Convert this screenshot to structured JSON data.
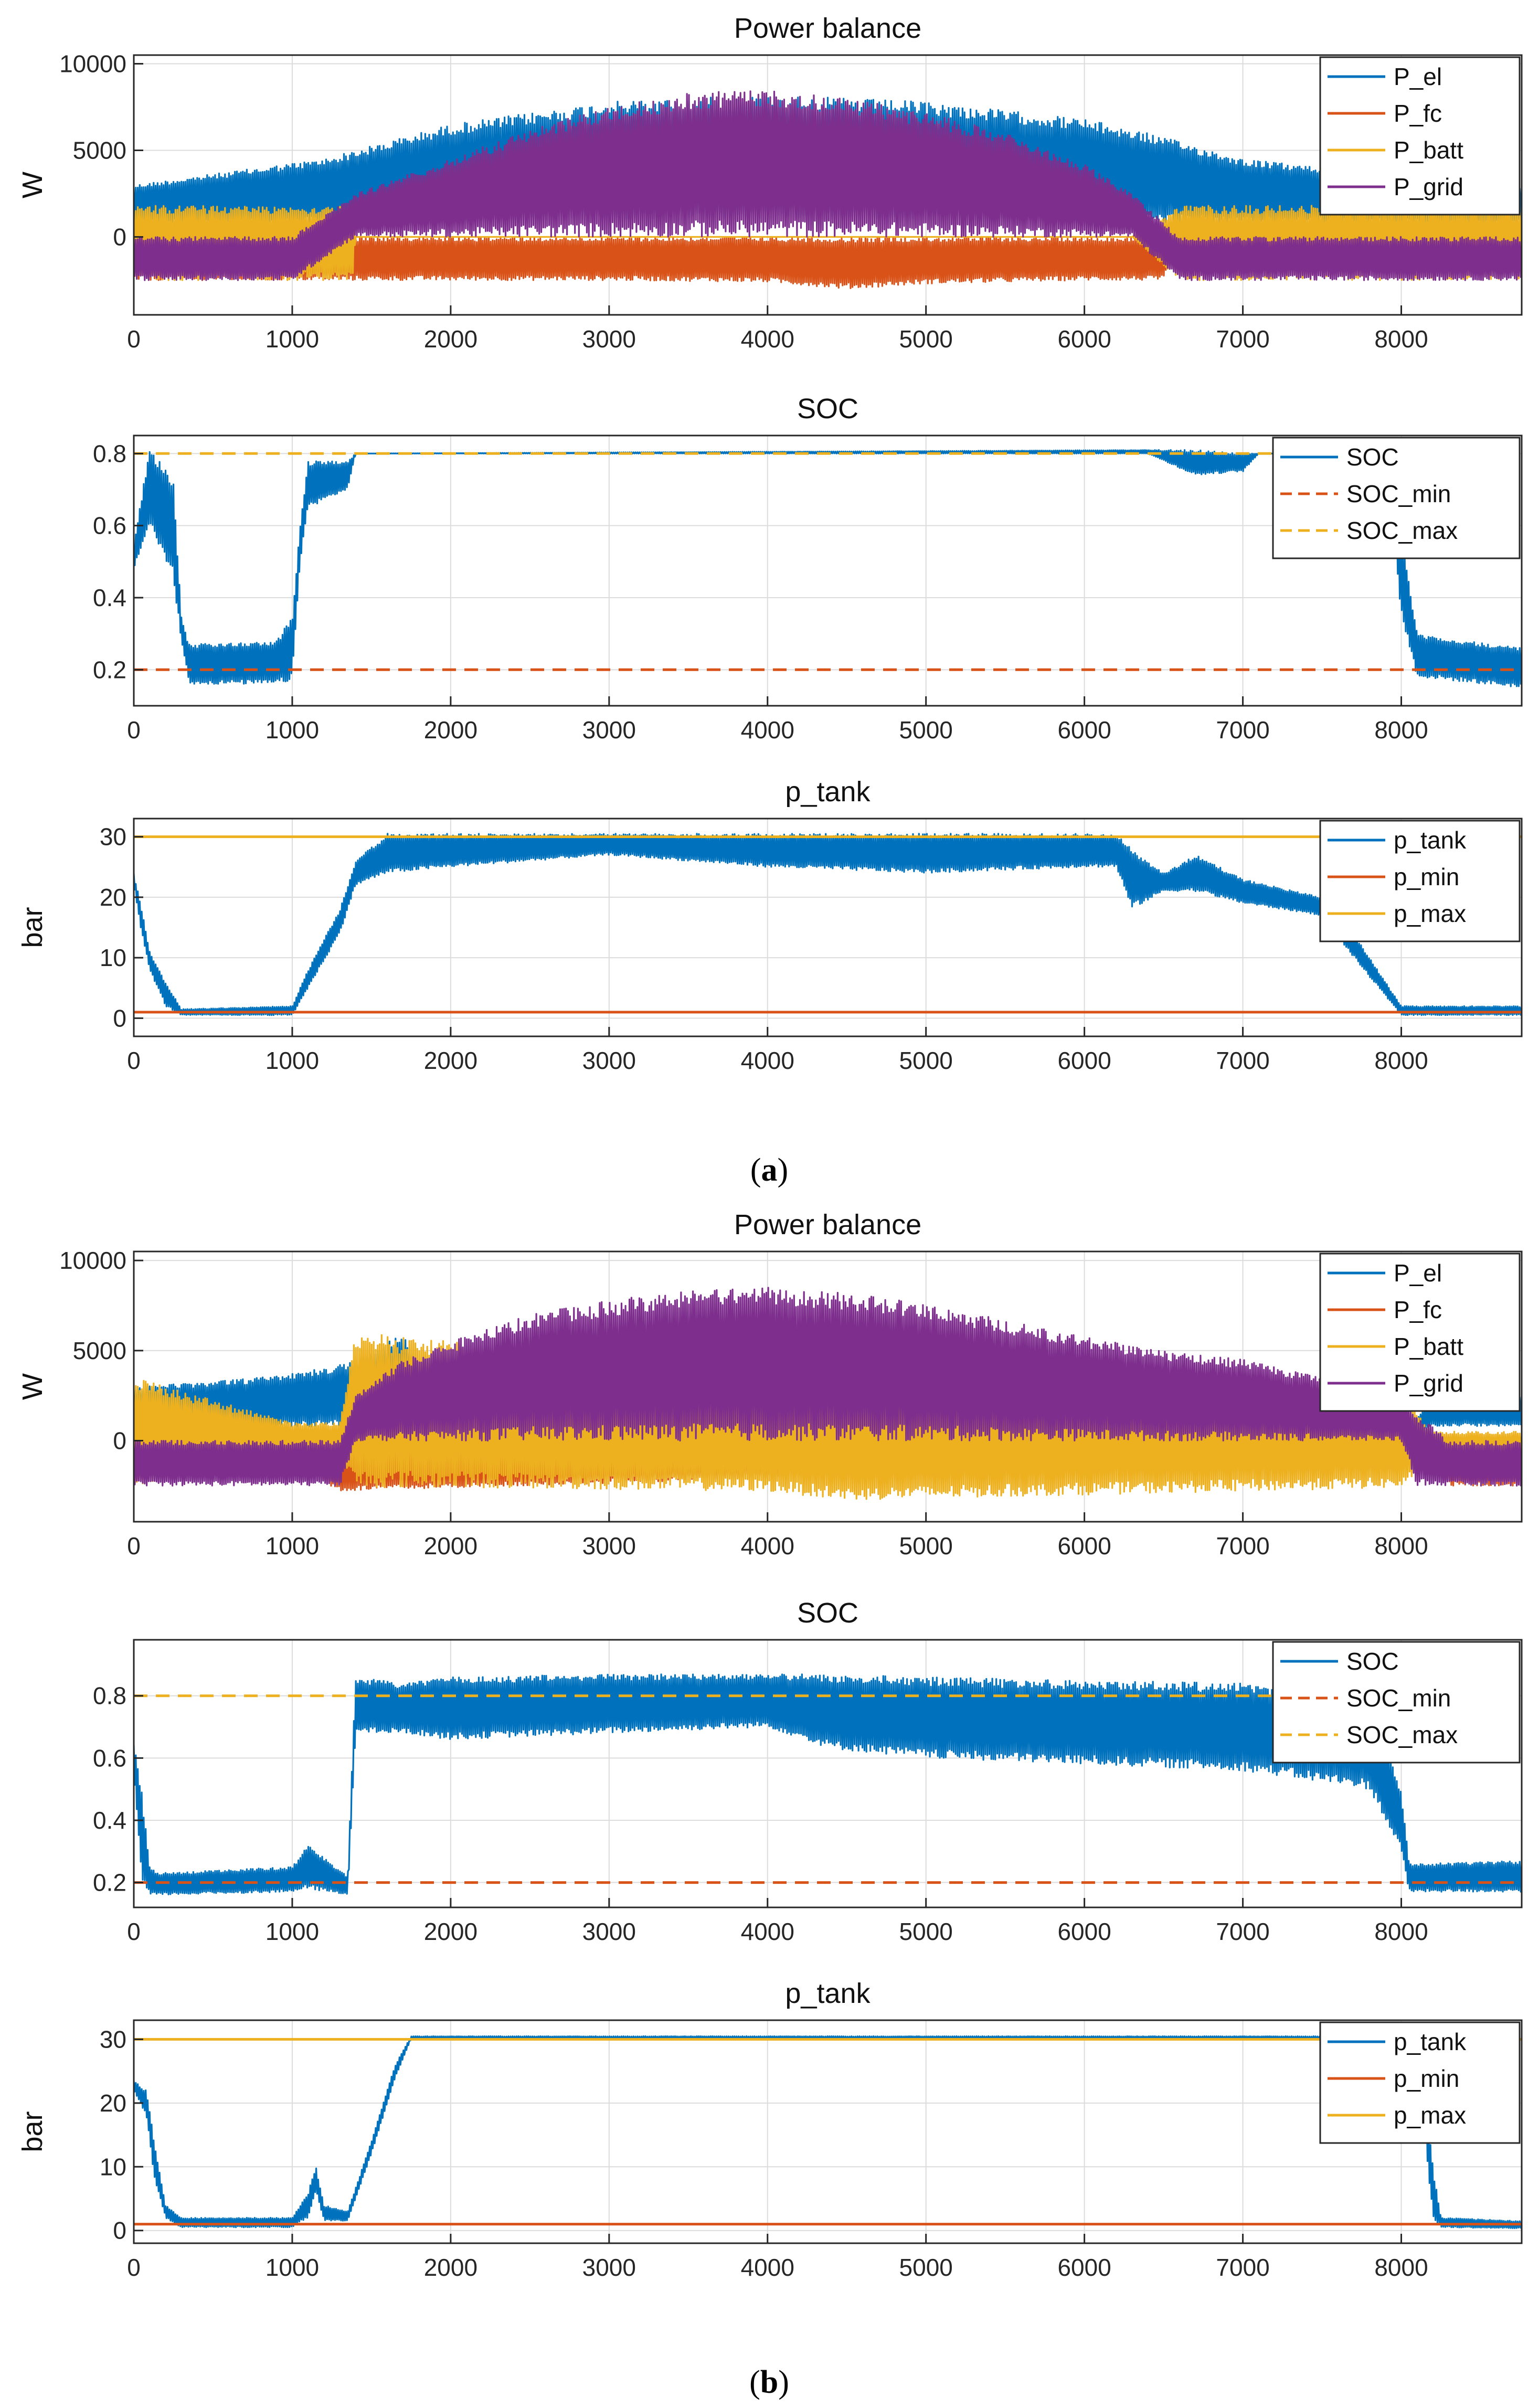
{
  "figure": {
    "captions": [
      {
        "open": "(",
        "letter": "a",
        "close": ")"
      },
      {
        "open": "(",
        "letter": "b",
        "close": ")"
      }
    ]
  },
  "colors": {
    "blue": "#0072BD",
    "orange": "#D95319",
    "yellow": "#EDB120",
    "purple": "#7E2F8E",
    "grid": "#dcdcdc",
    "axis": "#262626"
  },
  "chart_data": [
    {
      "type": "line",
      "title": "Power balance",
      "xlabel": "",
      "ylabel": "W",
      "xlim": [
        0,
        8760
      ],
      "ylim": [
        -4500,
        10500
      ],
      "xticks": [
        0,
        1000,
        2000,
        3000,
        4000,
        5000,
        6000,
        7000,
        8000
      ],
      "yticks": [
        0,
        5000,
        10000
      ],
      "grid": true,
      "legend_position": "top-right",
      "series": [
        {
          "name": "P_el",
          "color": "#0072BD",
          "style": "solid",
          "render": "envelope",
          "x": [
            0,
            400,
            800,
            1200,
            1400,
            2000,
            3000,
            4000,
            5000,
            6000,
            6400,
            7000,
            7500,
            8000,
            8760
          ],
          "upper": [
            3000,
            3500,
            4000,
            4500,
            5000,
            6500,
            7800,
            8200,
            7800,
            6800,
            6000,
            4500,
            4000,
            3500,
            3000
          ],
          "lower": [
            800,
            800,
            700,
            800,
            800,
            1000,
            1000,
            1000,
            1000,
            1000,
            800,
            800,
            800,
            800,
            800
          ]
        },
        {
          "name": "P_fc",
          "color": "#D95319",
          "style": "solid",
          "render": "envelope",
          "x": [
            0,
            1000,
            1400,
            2000,
            3000,
            4000,
            4500,
            5000,
            6000,
            6500,
            6600,
            8760
          ],
          "upper": [
            0,
            0,
            0,
            0,
            0,
            0,
            0,
            0,
            0,
            0,
            0,
            0
          ],
          "lower": [
            -2500,
            -2500,
            -2500,
            -2500,
            -2500,
            -2600,
            -3000,
            -2700,
            -2500,
            -2500,
            0,
            0
          ]
        },
        {
          "name": "P_batt",
          "color": "#EDB120",
          "style": "solid",
          "render": "envelope",
          "x": [
            0,
            1000,
            1380,
            1400,
            6300,
            6600,
            7000,
            8000,
            8760
          ],
          "upper": [
            1800,
            1800,
            1800,
            0,
            0,
            1800,
            1800,
            1800,
            1800
          ],
          "lower": [
            -2500,
            -2500,
            -2500,
            0,
            0,
            -2500,
            -2500,
            -2500,
            -2500
          ]
        },
        {
          "name": "P_grid",
          "color": "#7E2F8E",
          "style": "solid",
          "render": "envelope",
          "x": [
            0,
            1000,
            1400,
            2000,
            2500,
            3000,
            3500,
            4000,
            4500,
            5000,
            5500,
            6000,
            6300,
            6600,
            7000,
            8000,
            8760
          ],
          "upper": [
            0,
            0,
            2500,
            4500,
            6200,
            7500,
            8300,
            8500,
            8000,
            7200,
            6000,
            4200,
            2500,
            0,
            0,
            0,
            0
          ],
          "lower": [
            -2500,
            -2500,
            0,
            0,
            0,
            0,
            0,
            0,
            0,
            0,
            0,
            0,
            0,
            -2500,
            -2500,
            -2500,
            -2500
          ]
        }
      ]
    },
    {
      "type": "line",
      "title": "SOC",
      "xlabel": "",
      "ylabel": "",
      "xlim": [
        0,
        8760
      ],
      "ylim": [
        0.1,
        0.85
      ],
      "xticks": [
        0,
        1000,
        2000,
        3000,
        4000,
        5000,
        6000,
        7000,
        8000
      ],
      "yticks": [
        0.2,
        0.4,
        0.6,
        0.8
      ],
      "grid": true,
      "legend_position": "top-right",
      "series": [
        {
          "name": "SOC",
          "color": "#0072BD",
          "style": "solid",
          "render": "envelope",
          "x": [
            0,
            100,
            250,
            300,
            350,
            900,
            1000,
            1050,
            1100,
            1350,
            1400,
            6400,
            6700,
            7000,
            7100,
            7900,
            8000,
            8100,
            8760
          ],
          "upper": [
            0.55,
            0.82,
            0.72,
            0.35,
            0.27,
            0.28,
            0.35,
            0.6,
            0.78,
            0.78,
            0.8,
            0.81,
            0.81,
            0.8,
            0.8,
            0.8,
            0.58,
            0.3,
            0.26
          ],
          "lower": [
            0.48,
            0.6,
            0.45,
            0.28,
            0.16,
            0.16,
            0.17,
            0.5,
            0.65,
            0.7,
            0.8,
            0.8,
            0.74,
            0.75,
            0.8,
            0.8,
            0.35,
            0.18,
            0.15
          ]
        },
        {
          "name": "SOC_min",
          "color": "#D95319",
          "style": "dashed",
          "x": [
            0,
            8760
          ],
          "y": [
            0.2,
            0.2
          ]
        },
        {
          "name": "SOC_max",
          "color": "#EDB120",
          "style": "dashed",
          "x": [
            0,
            8760
          ],
          "y": [
            0.8,
            0.8
          ]
        }
      ]
    },
    {
      "type": "line",
      "title": "p_tank",
      "xlabel": "",
      "ylabel": "bar",
      "xlim": [
        0,
        8760
      ],
      "ylim": [
        -3,
        33
      ],
      "xticks": [
        0,
        1000,
        2000,
        3000,
        4000,
        5000,
        6000,
        7000,
        8000
      ],
      "yticks": [
        0,
        10,
        20,
        30
      ],
      "grid": true,
      "legend_position": "top-right",
      "series": [
        {
          "name": "p_tank",
          "color": "#0072BD",
          "style": "solid",
          "render": "envelope",
          "x": [
            0,
            50,
            100,
            200,
            300,
            1000,
            1100,
            1300,
            1400,
            1600,
            2000,
            3000,
            4000,
            5000,
            6000,
            6200,
            6300,
            6500,
            6700,
            7000,
            7500,
            7700,
            8000,
            8100,
            8760
          ],
          "upper": [
            24,
            18,
            11,
            6,
            1.5,
            2,
            8,
            18,
            26,
            30.5,
            30.5,
            30.5,
            30.5,
            30.5,
            30.5,
            30.5,
            28,
            24,
            27,
            23,
            20,
            14,
            2,
            2,
            2
          ],
          "lower": [
            22,
            14,
            8,
            2,
            0.5,
            0.5,
            5,
            14,
            22,
            24,
            25,
            27,
            25,
            24,
            25,
            25,
            18,
            21,
            21,
            19,
            17,
            10,
            0.5,
            0.5,
            0.5
          ]
        },
        {
          "name": "p_min",
          "color": "#D95319",
          "style": "solid",
          "x": [
            0,
            8760
          ],
          "y": [
            1,
            1
          ]
        },
        {
          "name": "p_max",
          "color": "#EDB120",
          "style": "solid",
          "x": [
            0,
            8760
          ],
          "y": [
            30,
            30
          ]
        }
      ]
    },
    {
      "type": "line",
      "title": "Power balance",
      "xlabel": "",
      "ylabel": "W",
      "xlim": [
        0,
        8760
      ],
      "ylim": [
        -4500,
        10500
      ],
      "xticks": [
        0,
        1000,
        2000,
        3000,
        4000,
        5000,
        6000,
        7000,
        8000
      ],
      "yticks": [
        0,
        5000,
        10000
      ],
      "grid": true,
      "legend_position": "top-right",
      "series": [
        {
          "name": "P_el",
          "color": "#0072BD",
          "style": "solid",
          "render": "envelope",
          "x": [
            0,
            400,
            800,
            1200,
            1400,
            1700,
            2000,
            8000,
            8200,
            8760
          ],
          "upper": [
            3000,
            3200,
            3500,
            4000,
            4500,
            6000,
            0,
            0,
            2500,
            2500
          ],
          "lower": [
            500,
            600,
            700,
            800,
            800,
            800,
            0,
            0,
            800,
            800
          ]
        },
        {
          "name": "P_fc",
          "color": "#D95319",
          "style": "solid",
          "render": "envelope",
          "x": [
            0,
            200,
            1000,
            1300,
            8100,
            8300,
            8760
          ],
          "upper": [
            0,
            0,
            0,
            0,
            0,
            0,
            0
          ],
          "lower": [
            -2500,
            -1500,
            -1500,
            -2800,
            -1000,
            -2500,
            -2500
          ]
        },
        {
          "name": "P_batt",
          "color": "#EDB120",
          "style": "solid",
          "render": "envelope",
          "x": [
            0,
            1000,
            1300,
            1400,
            2000,
            3000,
            4000,
            4500,
            5000,
            6000,
            7000,
            8000,
            8200,
            8760
          ],
          "upper": [
            3500,
            1000,
            1000,
            6000,
            5500,
            4000,
            3000,
            3000,
            3000,
            3000,
            3000,
            2500,
            500,
            500
          ],
          "lower": [
            -2500,
            -1000,
            -1000,
            -2600,
            -2600,
            -2700,
            -2800,
            -3300,
            -3200,
            -3000,
            -2800,
            -2600,
            -1000,
            -1000
          ]
        },
        {
          "name": "P_grid",
          "color": "#7E2F8E",
          "style": "solid",
          "render": "envelope",
          "x": [
            0,
            1000,
            1300,
            1400,
            1700,
            2000,
            2500,
            3000,
            3500,
            4000,
            4500,
            5000,
            5500,
            6000,
            6500,
            7000,
            7500,
            8000,
            8100,
            8300,
            8760
          ],
          "upper": [
            0,
            0,
            0,
            2500,
            4500,
            5500,
            7000,
            7800,
            8300,
            8500,
            8200,
            7600,
            6700,
            5800,
            5000,
            4500,
            3500,
            2500,
            1500,
            0,
            0
          ],
          "lower": [
            -2500,
            -2500,
            -2500,
            0,
            0,
            0,
            0,
            0,
            0,
            0,
            0,
            0,
            0,
            0,
            0,
            0,
            0,
            0,
            -2500,
            -2500,
            -2500
          ]
        }
      ]
    },
    {
      "type": "line",
      "title": "SOC",
      "xlabel": "",
      "ylabel": "",
      "xlim": [
        0,
        8760
      ],
      "ylim": [
        0.12,
        0.98
      ],
      "xticks": [
        0,
        1000,
        2000,
        3000,
        4000,
        5000,
        6000,
        7000,
        8000
      ],
      "yticks": [
        0.2,
        0.4,
        0.6,
        0.8
      ],
      "grid": true,
      "legend_position": "top-right",
      "series": [
        {
          "name": "SOC",
          "color": "#0072BD",
          "style": "solid",
          "render": "envelope",
          "x": [
            0,
            50,
            100,
            150,
            1000,
            1100,
            1350,
            1400,
            1700,
            2000,
            3000,
            4000,
            4400,
            5000,
            6000,
            7000,
            7800,
            8000,
            8050,
            8760
          ],
          "upper": [
            0.65,
            0.5,
            0.25,
            0.23,
            0.25,
            0.32,
            0.22,
            0.86,
            0.84,
            0.86,
            0.87,
            0.87,
            0.87,
            0.86,
            0.85,
            0.84,
            0.8,
            0.5,
            0.26,
            0.27
          ],
          "lower": [
            0.55,
            0.2,
            0.16,
            0.16,
            0.17,
            0.18,
            0.16,
            0.68,
            0.68,
            0.66,
            0.68,
            0.7,
            0.63,
            0.6,
            0.58,
            0.56,
            0.5,
            0.3,
            0.17,
            0.17
          ]
        },
        {
          "name": "SOC_min",
          "color": "#D95319",
          "style": "dashed",
          "x": [
            0,
            8760
          ],
          "y": [
            0.2,
            0.2
          ]
        },
        {
          "name": "SOC_max",
          "color": "#EDB120",
          "style": "dashed",
          "x": [
            0,
            8760
          ],
          "y": [
            0.8,
            0.8
          ]
        }
      ]
    },
    {
      "type": "line",
      "title": "p_tank",
      "xlabel": "",
      "ylabel": "bar",
      "xlim": [
        0,
        8760
      ],
      "ylim": [
        -2,
        33
      ],
      "xticks": [
        0,
        1000,
        2000,
        3000,
        4000,
        5000,
        6000,
        7000,
        8000
      ],
      "yticks": [
        0,
        10,
        20,
        30
      ],
      "grid": true,
      "legend_position": "top-right",
      "series": [
        {
          "name": "p_tank",
          "color": "#0072BD",
          "style": "solid",
          "render": "envelope",
          "x": [
            0,
            80,
            130,
            200,
            300,
            1000,
            1100,
            1150,
            1200,
            1350,
            1500,
            1650,
            1750,
            8100,
            8150,
            8200,
            8250,
            8760
          ],
          "upper": [
            23.5,
            22,
            14,
            4,
            2,
            2,
            6,
            10,
            4,
            3,
            14,
            26,
            30.5,
            30.5,
            24,
            10,
            2,
            1.5
          ],
          "lower": [
            22,
            18,
            8,
            2,
            0.5,
            0.5,
            2,
            6,
            1.5,
            1.5,
            12,
            24,
            30,
            30,
            14,
            2,
            0.5,
            0.3
          ]
        },
        {
          "name": "p_min",
          "color": "#D95319",
          "style": "solid",
          "x": [
            0,
            8760
          ],
          "y": [
            1,
            1
          ]
        },
        {
          "name": "p_max",
          "color": "#EDB120",
          "style": "solid",
          "x": [
            0,
            8760
          ],
          "y": [
            30,
            30
          ]
        }
      ]
    }
  ]
}
